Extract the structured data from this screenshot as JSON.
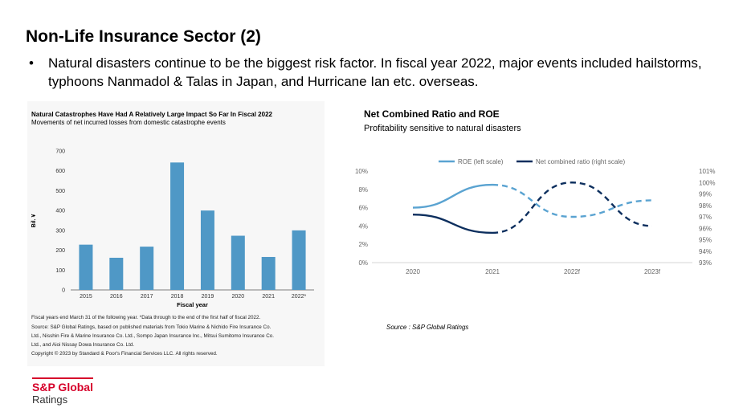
{
  "slide": {
    "title": "Non-Life Insurance Sector (2)",
    "bullet_mark": "•",
    "bullet": "Natural disasters continue to be the biggest risk factor. In fiscal year 2022, major events included hailstorms, typhoons Nanmadol & Talas in Japan, and Hurricane Ian etc. overseas."
  },
  "left_chart": {
    "title": "Natural Catastrophes Have Had A Relatively Large Impact So Far In Fiscal 2022",
    "subtitle": "Movements of net incurred losses from domestic catastrophe events",
    "notes": [
      "Fiscal years end March 31 of the following year. *Data through to the end of the first half of fiscal 2022.",
      "Source: S&P Global Ratings, based on published materials from Tokio Marine & Nichido Fire Insurance Co.",
      "Ltd., Nisshin Fire & Marine Insurance Co. Ltd., Sompo Japan Insurance Inc., Mitsui Sumitomo Insurance Co.",
      "Ltd., and Aioi Nissay Dowa Insurance Co. Ltd.",
      "Copyright © 2023 by Standard & Poor's Financial Services LLC. All rights reserved."
    ]
  },
  "right_chart": {
    "title": "Net Combined Ratio and ROE",
    "subtitle": "Profitability sensitive to natural disasters",
    "source": "Source : S&P Global Ratings"
  },
  "logo": {
    "line1": "S&P Global",
    "line2": "Ratings"
  },
  "colors": {
    "bar": "#4f98c6",
    "roe": "#5aa3d1",
    "ncr": "#0d2f5e",
    "brand": "#d6002a"
  },
  "chart_data": [
    {
      "type": "bar",
      "title": "Natural Catastrophes Have Had A Relatively Large Impact So Far In Fiscal 2022",
      "categories": [
        "2015",
        "2016",
        "2017",
        "2018",
        "2019",
        "2020",
        "2021",
        "2022*"
      ],
      "values": [
        228,
        162,
        218,
        642,
        400,
        273,
        166,
        300
      ],
      "xlabel": "Fiscal year",
      "ylabel": "Bil. ¥",
      "ylim": [
        0,
        700
      ],
      "yticks": [
        0,
        100,
        200,
        300,
        400,
        500,
        600,
        700
      ],
      "grid": false
    },
    {
      "type": "line",
      "title": "Net Combined Ratio and ROE",
      "x": [
        "2020",
        "2021",
        "2022f",
        "2023f"
      ],
      "series": [
        {
          "name": "ROE (left scale)",
          "values": [
            6.0,
            8.5,
            5.0,
            6.8
          ],
          "axis": "left",
          "dashed_from_index": 1
        },
        {
          "name": "Net combined ratio (right scale)",
          "values": [
            97.2,
            95.6,
            100.0,
            96.2
          ],
          "axis": "right",
          "dashed_from_index": 1
        }
      ],
      "y_left": {
        "ylim": [
          0,
          10
        ],
        "ticks": [
          "0%",
          "2%",
          "4%",
          "6%",
          "8%",
          "10%"
        ]
      },
      "y_right": {
        "ylim": [
          93,
          101
        ],
        "ticks": [
          "93%",
          "94%",
          "95%",
          "96%",
          "97%",
          "98%",
          "99%",
          "100%",
          "101%"
        ]
      },
      "legend": "top"
    }
  ]
}
